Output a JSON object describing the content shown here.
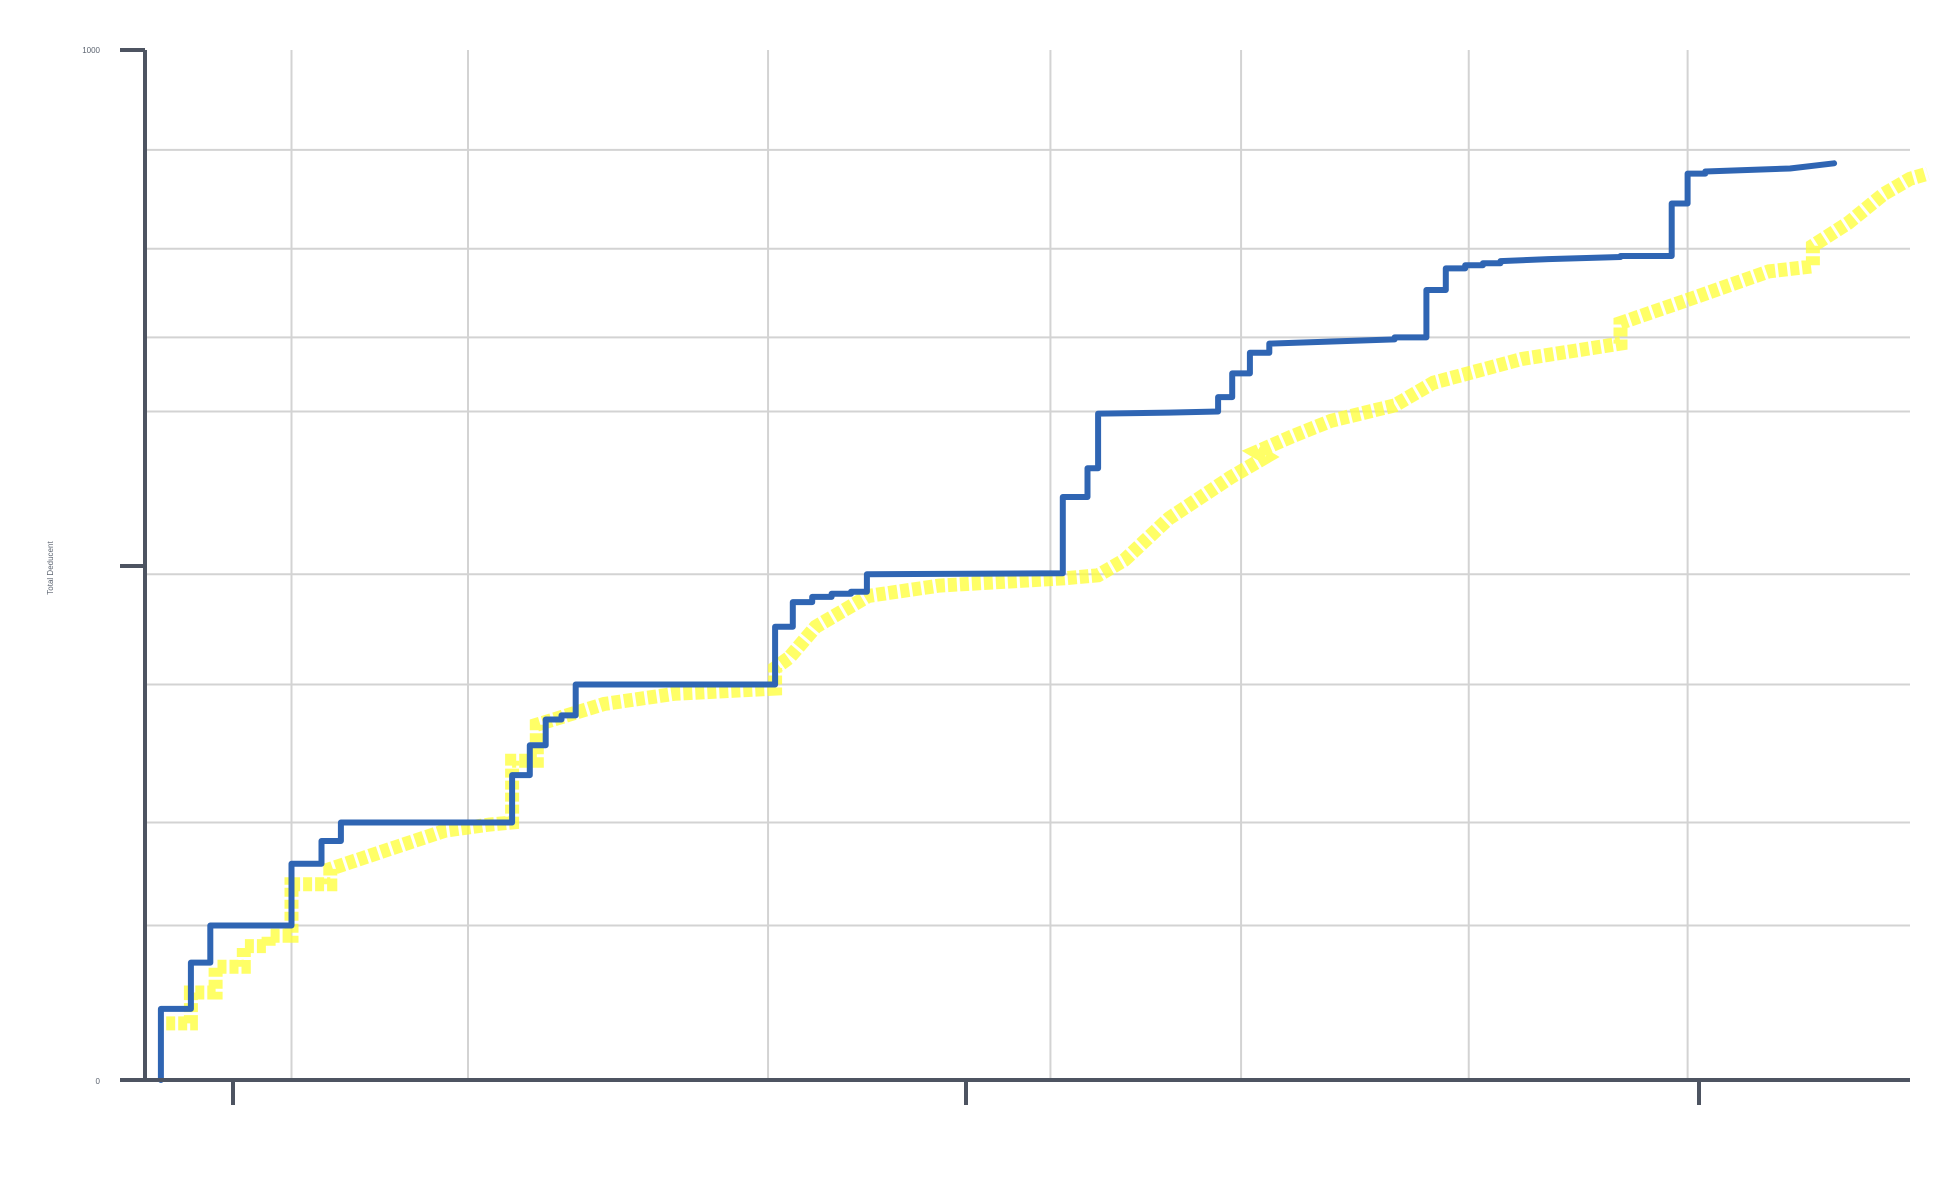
{
  "chart_data": {
    "type": "line",
    "ylabel": "Total Deducent",
    "ylim": [
      0,
      1000
    ],
    "y_tick_labels": [
      "0",
      "1000"
    ],
    "grid": true,
    "colors": {
      "actual": "#2f65b3",
      "band": "#ffff33",
      "axis": "#4d5461",
      "grid": "#d3d3d3"
    },
    "series": [
      {
        "key": "actual",
        "style": "step",
        "points": [
          [
            0.009,
            0
          ],
          [
            0.009,
            69
          ],
          [
            0.026,
            69
          ],
          [
            0.026,
            114
          ],
          [
            0.037,
            114
          ],
          [
            0.037,
            150
          ],
          [
            0.083,
            150
          ],
          [
            0.083,
            210
          ],
          [
            0.1,
            210
          ],
          [
            0.1,
            232
          ],
          [
            0.111,
            232
          ],
          [
            0.111,
            250
          ],
          [
            0.208,
            250
          ],
          [
            0.208,
            296
          ],
          [
            0.218,
            296
          ],
          [
            0.218,
            325
          ],
          [
            0.227,
            325
          ],
          [
            0.227,
            350
          ],
          [
            0.236,
            350
          ],
          [
            0.236,
            354
          ],
          [
            0.244,
            354
          ],
          [
            0.244,
            384
          ],
          [
            0.357,
            384
          ],
          [
            0.357,
            440
          ],
          [
            0.367,
            440
          ],
          [
            0.367,
            464
          ],
          [
            0.378,
            464
          ],
          [
            0.378,
            469
          ],
          [
            0.389,
            469
          ],
          [
            0.389,
            472
          ],
          [
            0.4,
            472
          ],
          [
            0.4,
            474
          ],
          [
            0.409,
            474
          ],
          [
            0.409,
            491
          ],
          [
            0.52,
            492
          ],
          [
            0.52,
            566
          ],
          [
            0.534,
            566
          ],
          [
            0.534,
            594
          ],
          [
            0.54,
            594
          ],
          [
            0.54,
            647
          ],
          [
            0.58,
            648
          ],
          [
            0.608,
            649
          ],
          [
            0.608,
            663
          ],
          [
            0.616,
            663
          ],
          [
            0.616,
            686
          ],
          [
            0.626,
            686
          ],
          [
            0.626,
            706
          ],
          [
            0.637,
            706
          ],
          [
            0.637,
            715
          ],
          [
            0.708,
            719
          ],
          [
            0.708,
            721
          ],
          [
            0.726,
            721
          ],
          [
            0.726,
            767
          ],
          [
            0.737,
            767
          ],
          [
            0.737,
            788
          ],
          [
            0.748,
            788
          ],
          [
            0.748,
            791
          ],
          [
            0.758,
            791
          ],
          [
            0.758,
            793
          ],
          [
            0.768,
            793
          ],
          [
            0.768,
            795
          ],
          [
            0.795,
            797
          ],
          [
            0.836,
            799
          ],
          [
            0.836,
            800
          ],
          [
            0.865,
            800
          ],
          [
            0.865,
            851
          ],
          [
            0.874,
            851
          ],
          [
            0.874,
            880
          ],
          [
            0.884,
            880
          ],
          [
            0.884,
            882
          ],
          [
            0.932,
            885
          ],
          [
            0.957,
            890
          ]
        ]
      },
      {
        "key": "band",
        "style": "step",
        "points": [
          [
            0.012,
            55
          ],
          [
            0.026,
            55
          ],
          [
            0.026,
            85
          ],
          [
            0.04,
            85
          ],
          [
            0.04,
            110
          ],
          [
            0.056,
            110
          ],
          [
            0.056,
            130
          ],
          [
            0.07,
            130
          ],
          [
            0.07,
            140
          ],
          [
            0.083,
            140
          ],
          [
            0.083,
            190
          ],
          [
            0.105,
            190
          ],
          [
            0.105,
            205
          ],
          [
            0.14,
            225
          ],
          [
            0.17,
            242
          ],
          [
            0.195,
            248
          ],
          [
            0.208,
            250
          ],
          [
            0.208,
            310
          ],
          [
            0.222,
            310
          ],
          [
            0.222,
            345
          ],
          [
            0.26,
            365
          ],
          [
            0.3,
            375
          ],
          [
            0.357,
            380
          ],
          [
            0.357,
            400
          ],
          [
            0.365,
            410
          ],
          [
            0.38,
            440
          ],
          [
            0.41,
            470
          ],
          [
            0.45,
            480
          ],
          [
            0.52,
            487
          ],
          [
            0.54,
            490
          ],
          [
            0.555,
            505
          ],
          [
            0.58,
            545
          ],
          [
            0.615,
            585
          ],
          [
            0.635,
            605
          ],
          [
            0.63,
            610
          ],
          [
            0.65,
            625
          ],
          [
            0.672,
            640
          ],
          [
            0.708,
            655
          ],
          [
            0.73,
            677
          ],
          [
            0.78,
            700
          ],
          [
            0.836,
            715
          ],
          [
            0.836,
            735
          ],
          [
            0.87,
            755
          ],
          [
            0.92,
            785
          ],
          [
            0.945,
            790
          ],
          [
            0.945,
            810
          ],
          [
            0.965,
            832
          ],
          [
            0.985,
            860
          ],
          [
            1.0,
            875
          ],
          [
            1.01,
            880
          ]
        ]
      }
    ],
    "x_grid": [
      0.083,
      0.183,
      0.353,
      0.513,
      0.621,
      0.75,
      0.874
    ],
    "y_grid": [
      150,
      250,
      384,
      491,
      649,
      721,
      807,
      903
    ]
  }
}
